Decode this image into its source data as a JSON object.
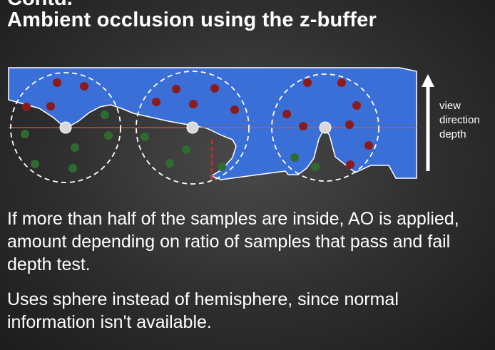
{
  "slide": {
    "title_partial": "Contd.",
    "title": "Ambient occlusion using the z-buffer",
    "view_labels": [
      "view",
      "direction",
      "depth"
    ],
    "bullets": [
      "If more than half of the samples are inside, AO is applied, amount depending on ratio of samples that pass and fail depth test.",
      "Uses sphere instead of hemisphere, since normal information isn't available."
    ]
  },
  "colors": {
    "surface_fill": "#3a6fd8",
    "inside_sample": "#8b1a1a",
    "outside_sample": "#2f6b2f",
    "center_point": "#d8d8d8",
    "depth_line": "#d05a3a",
    "depth_marker": "#e02020"
  }
}
